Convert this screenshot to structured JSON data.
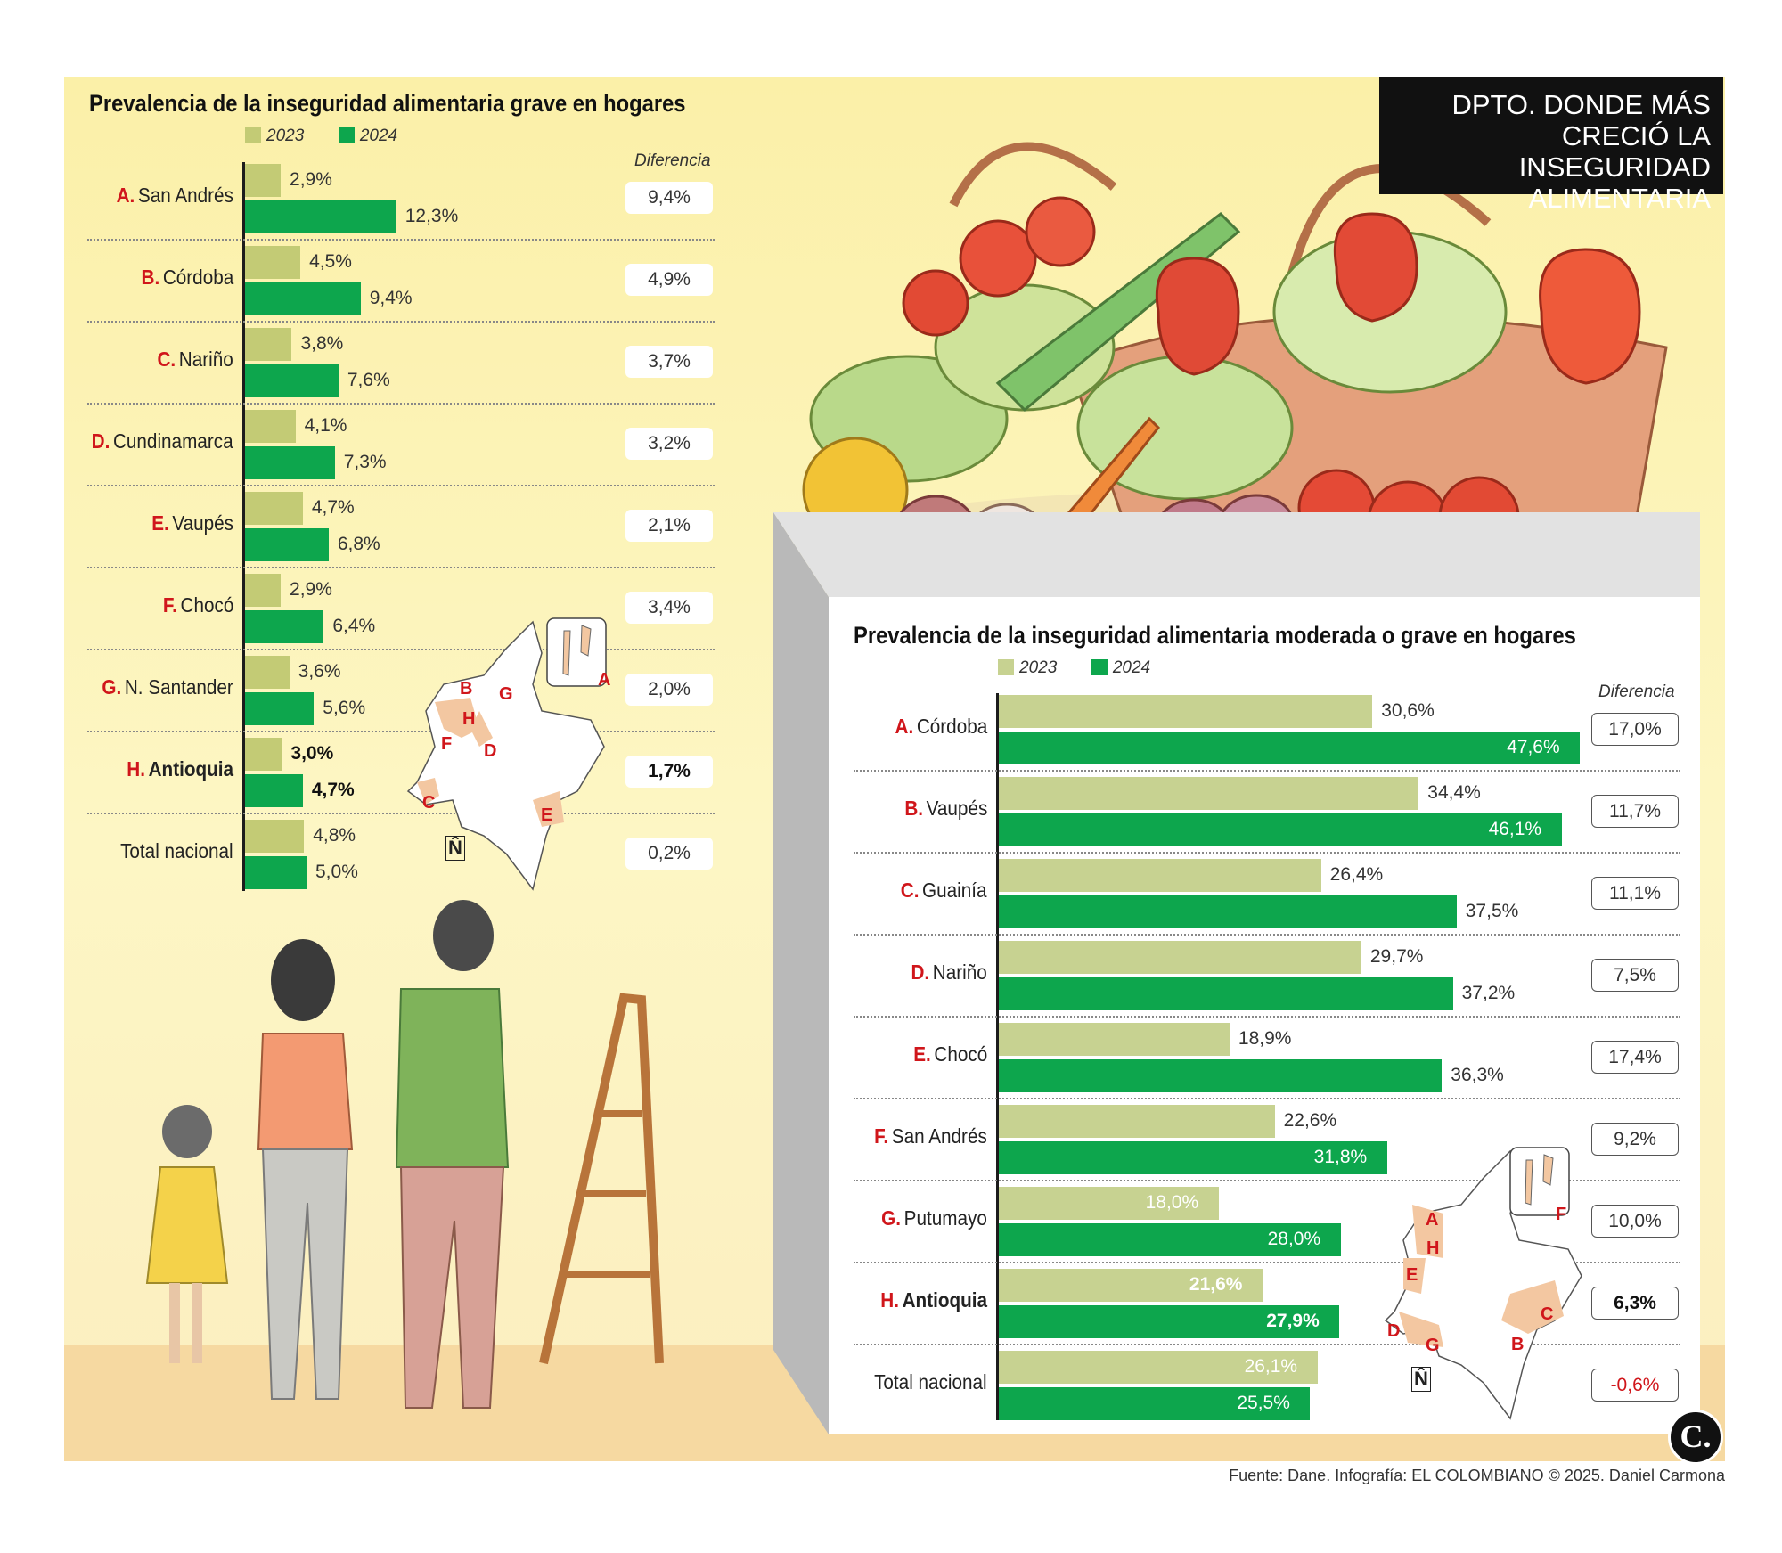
{
  "header_tag": [
    "DPTO. DONDE MÁS",
    "CRECIÓ LA INSEGURIDAD",
    "ALIMENTARIA"
  ],
  "source": "Fuente: Dane. Infografía: EL COLOMBIANO © 2025. Daniel Carmona",
  "logo": "C.",
  "north": "N̂",
  "colors": {
    "c2023": "#c3cb75",
    "c2024": "#0da64d",
    "c2023_right": "#c7d291",
    "letter": "#d0161b"
  },
  "chart_data": [
    {
      "type": "bar",
      "orientation": "horizontal",
      "title": "Prevalencia de la inseguridad alimentaria grave en hogares",
      "legend": [
        "2023",
        "2024"
      ],
      "diff_header": "Diferencia",
      "categories": [
        {
          "letter": "A.",
          "name": "San Andrés",
          "v2023": "2,9%",
          "v2024": "12,3%",
          "diff": "9,4%",
          "bold": false
        },
        {
          "letter": "B.",
          "name": "Córdoba",
          "v2023": "4,5%",
          "v2024": "9,4%",
          "diff": "4,9%",
          "bold": false
        },
        {
          "letter": "C.",
          "name": "Nariño",
          "v2023": "3,8%",
          "v2024": "7,6%",
          "diff": "3,7%",
          "bold": false
        },
        {
          "letter": "D.",
          "name": "Cundinamarca",
          "v2023": "4,1%",
          "v2024": "7,3%",
          "diff": "3,2%",
          "bold": false
        },
        {
          "letter": "E.",
          "name": "Vaupés",
          "v2023": "4,7%",
          "v2024": "6,8%",
          "diff": "2,1%",
          "bold": false
        },
        {
          "letter": "F.",
          "name": "Chocó",
          "v2023": "2,9%",
          "v2024": "6,4%",
          "diff": "3,4%",
          "bold": false
        },
        {
          "letter": "G.",
          "name": "N. Santander",
          "v2023": "3,6%",
          "v2024": "5,6%",
          "diff": "2,0%",
          "bold": false
        },
        {
          "letter": "H.",
          "name": "Antioquia",
          "v2023": "3,0%",
          "v2024": "4,7%",
          "diff": "1,7%",
          "bold": true
        },
        {
          "letter": "",
          "name": "Total nacional",
          "v2023": "4,8%",
          "v2024": "5,0%",
          "diff": "0,2%",
          "bold": false
        }
      ],
      "series": [
        {
          "name": "2023",
          "values": [
            2.9,
            4.5,
            3.8,
            4.1,
            4.7,
            2.9,
            3.6,
            3.0,
            4.8
          ]
        },
        {
          "name": "2024",
          "values": [
            12.3,
            9.4,
            7.6,
            7.3,
            6.8,
            6.4,
            5.6,
            4.7,
            5.0
          ]
        }
      ],
      "map_letters": [
        "A",
        "B",
        "C",
        "D",
        "E",
        "F",
        "G",
        "H"
      ]
    },
    {
      "type": "bar",
      "orientation": "horizontal",
      "title": "Prevalencia de la inseguridad alimentaria moderada o grave en hogares",
      "legend": [
        "2023",
        "2024"
      ],
      "diff_header": "Diferencia",
      "categories": [
        {
          "letter": "A.",
          "name": "Córdoba",
          "v2023": "30,6%",
          "v2024": "47,6%",
          "diff": "17,0%",
          "bold": false,
          "neg": false
        },
        {
          "letter": "B.",
          "name": "Vaupés",
          "v2023": "34,4%",
          "v2024": "46,1%",
          "diff": "11,7%",
          "bold": false,
          "neg": false
        },
        {
          "letter": "C.",
          "name": "Guainía",
          "v2023": "26,4%",
          "v2024": "37,5%",
          "diff": "11,1%",
          "bold": false,
          "neg": false
        },
        {
          "letter": "D.",
          "name": "Nariño",
          "v2023": "29,7%",
          "v2024": "37,2%",
          "diff": "7,5%",
          "bold": false,
          "neg": false
        },
        {
          "letter": "E.",
          "name": "Chocó",
          "v2023": "18,9%",
          "v2024": "36,3%",
          "diff": "17,4%",
          "bold": false,
          "neg": false
        },
        {
          "letter": "F.",
          "name": "San Andrés",
          "v2023": "22,6%",
          "v2024": "31,8%",
          "diff": "9,2%",
          "bold": false,
          "neg": false
        },
        {
          "letter": "G.",
          "name": "Putumayo",
          "v2023": "18,0%",
          "v2024": "28,0%",
          "diff": "10,0%",
          "bold": false,
          "neg": false
        },
        {
          "letter": "H.",
          "name": "Antioquia",
          "v2023": "21,6%",
          "v2024": "27,9%",
          "diff": "6,3%",
          "bold": true,
          "neg": false
        },
        {
          "letter": "",
          "name": "Total nacional",
          "v2023": "26,1%",
          "v2024": "25,5%",
          "diff": "-0,6%",
          "bold": false,
          "neg": true
        }
      ],
      "series": [
        {
          "name": "2023",
          "values": [
            30.6,
            34.4,
            26.4,
            29.7,
            18.9,
            22.6,
            18.0,
            21.6,
            26.1
          ]
        },
        {
          "name": "2024",
          "values": [
            47.6,
            46.1,
            37.5,
            37.2,
            36.3,
            31.8,
            28.0,
            27.9,
            25.5
          ]
        }
      ],
      "map_letters": [
        "A",
        "B",
        "C",
        "D",
        "E",
        "F",
        "G",
        "H"
      ]
    }
  ]
}
